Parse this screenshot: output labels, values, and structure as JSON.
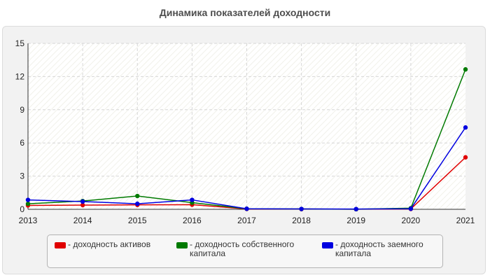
{
  "chart_data": {
    "type": "line",
    "title": "Динамика показателей доходности",
    "categories": [
      "2013",
      "2014",
      "2015",
      "2016",
      "2017",
      "2018",
      "2019",
      "2020",
      "2021"
    ],
    "yticks": [
      "0",
      "3",
      "6",
      "9",
      "12",
      "15"
    ],
    "ylim": [
      0,
      15
    ],
    "grid": true,
    "legend_placement": "bottom",
    "series": [
      {
        "name": "- доходность активов",
        "color": "#e00000",
        "values": [
          0.35,
          0.38,
          0.4,
          0.42,
          0.03,
          0.02,
          0.01,
          0.03,
          4.7
        ]
      },
      {
        "name": "- доходность собственного капитала",
        "color": "#007a00",
        "values": [
          0.5,
          0.75,
          1.2,
          0.6,
          0.05,
          0.03,
          0.01,
          0.1,
          12.65
        ]
      },
      {
        "name": "- доходность заемного капитала",
        "color": "#0000e0",
        "values": [
          0.85,
          0.7,
          0.5,
          0.85,
          0.05,
          0.03,
          0.02,
          0.05,
          7.4
        ]
      }
    ]
  }
}
